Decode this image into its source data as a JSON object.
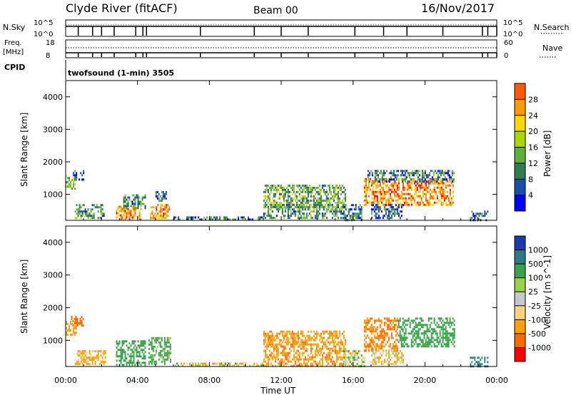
{
  "header": {
    "station": "Clyde River (fitACF)",
    "beam": "Beam 00",
    "date": "16/Nov/2017"
  },
  "strips": {
    "nsky_label": "N.Sky",
    "nsky_top_tick": "10^5",
    "nsky_bottom_tick": "10^0",
    "nsearch_label": "N.Search",
    "nsearch_top_tick": "10^5",
    "nsearch_bottom_tick": "10^0",
    "freq_label_1": "Freq.",
    "freq_label_2": "[MHz]",
    "freq_top_tick": "18",
    "freq_bottom_tick": "8",
    "nave_label": "Nave",
    "nave_top_tick": "60",
    "nave_bottom_tick": "0",
    "cpid_label": "CPID",
    "cpid_value": "twofsound (1-min) 3505"
  },
  "colors": {
    "power": [
      "#0000ff",
      "#1a4ea8",
      "#2f7f4f",
      "#5fb03a",
      "#a8d800",
      "#ffd700",
      "#ff9a00",
      "#ff5a00",
      "#ff0000"
    ],
    "velocity": [
      "#ff0000",
      "#ff6a00",
      "#ffa000",
      "#ffd27f",
      "#c8c8c8",
      "#9ad14a",
      "#3aa24a",
      "#2a7a8a",
      "#1a3ab0",
      "#0000ff"
    ]
  },
  "chart_data": [
    {
      "type": "heatmap",
      "name": "power",
      "xlabel": "",
      "ylabel": "Slant Range [km]",
      "x_ticks": [
        "00:00",
        "04:00",
        "08:00",
        "12:00",
        "16:00",
        "20:00",
        "00:00"
      ],
      "xlim_hours": [
        0,
        24
      ],
      "ylim": [
        200,
        4500
      ],
      "y_ticks": [
        1000,
        2000,
        3000,
        4000
      ],
      "colorbar_label": "Power [dB]",
      "colorbar_ticks": [
        4,
        8,
        12,
        16,
        20,
        24,
        28
      ],
      "colorbar_range": [
        0,
        32
      ],
      "regions": [
        {
          "t": [
            0.0,
            0.5
          ],
          "r": [
            1200,
            1600
          ],
          "v": 14
        },
        {
          "t": [
            0.4,
            1.0
          ],
          "r": [
            1450,
            1750
          ],
          "v": 6
        },
        {
          "t": [
            0.5,
            2.2
          ],
          "r": [
            250,
            700
          ],
          "v": 10
        },
        {
          "t": [
            2.8,
            4.2
          ],
          "r": [
            250,
            650
          ],
          "v": 24
        },
        {
          "t": [
            3.2,
            4.4
          ],
          "r": [
            600,
            1000
          ],
          "v": 10
        },
        {
          "t": [
            4.7,
            5.8
          ],
          "r": [
            250,
            700
          ],
          "v": 22
        },
        {
          "t": [
            5.0,
            5.6
          ],
          "r": [
            800,
            1100
          ],
          "v": 8
        },
        {
          "t": [
            6.0,
            11.0
          ],
          "r": [
            220,
            320
          ],
          "v": 8
        },
        {
          "t": [
            11.0,
            15.6
          ],
          "r": [
            250,
            700
          ],
          "v": 10
        },
        {
          "t": [
            11.0,
            15.6
          ],
          "r": [
            600,
            1300
          ],
          "v": 12
        },
        {
          "t": [
            15.4,
            16.5
          ],
          "r": [
            200,
            700
          ],
          "v": 8
        },
        {
          "t": [
            16.6,
            21.6
          ],
          "r": [
            700,
            1500
          ],
          "v": 24
        },
        {
          "t": [
            16.8,
            21.6
          ],
          "r": [
            1400,
            1750
          ],
          "v": 8
        },
        {
          "t": [
            17.0,
            18.8
          ],
          "r": [
            250,
            700
          ],
          "v": 6
        },
        {
          "t": [
            22.5,
            23.5
          ],
          "r": [
            200,
            500
          ],
          "v": 6
        }
      ]
    },
    {
      "type": "heatmap",
      "name": "velocity",
      "xlabel": "Time UT",
      "ylabel": "Slant Range [km]",
      "x_ticks": [
        "00:00",
        "04:00",
        "08:00",
        "12:00",
        "16:00",
        "20:00",
        "00:00"
      ],
      "xlim_hours": [
        0,
        24
      ],
      "ylim": [
        200,
        4500
      ],
      "y_ticks": [
        1000,
        2000,
        3000,
        4000
      ],
      "colorbar_label": "Velocity [m s^-1]",
      "colorbar_ticks": [
        "1000",
        "500",
        "100",
        "25",
        "-25",
        "-100",
        "-500",
        "-1000"
      ],
      "colorbar_levels": [
        -1000,
        -500,
        -100,
        -25,
        25,
        100,
        500,
        1000
      ],
      "regions": [
        {
          "t": [
            0.0,
            0.6
          ],
          "r": [
            1200,
            1600
          ],
          "v": -300
        },
        {
          "t": [
            0.3,
            1.0
          ],
          "r": [
            1450,
            1750
          ],
          "v": -700
        },
        {
          "t": [
            0.5,
            2.2
          ],
          "r": [
            250,
            700
          ],
          "v": -200
        },
        {
          "t": [
            2.8,
            4.4
          ],
          "r": [
            250,
            1000
          ],
          "v": 300
        },
        {
          "t": [
            4.6,
            5.8
          ],
          "r": [
            250,
            1100
          ],
          "v": 200
        },
        {
          "t": [
            6.0,
            11.0
          ],
          "r": [
            220,
            320
          ],
          "v": -50
        },
        {
          "t": [
            11.0,
            15.6
          ],
          "r": [
            250,
            1300
          ],
          "v": -400
        },
        {
          "t": [
            15.4,
            16.6
          ],
          "r": [
            200,
            700
          ],
          "v": 50
        },
        {
          "t": [
            16.6,
            18.5
          ],
          "r": [
            700,
            1700
          ],
          "v": -500
        },
        {
          "t": [
            18.5,
            21.6
          ],
          "r": [
            800,
            1700
          ],
          "v": 300
        },
        {
          "t": [
            17.0,
            18.8
          ],
          "r": [
            250,
            700
          ],
          "v": -100
        },
        {
          "t": [
            22.5,
            23.5
          ],
          "r": [
            200,
            500
          ],
          "v": 600
        }
      ]
    }
  ]
}
